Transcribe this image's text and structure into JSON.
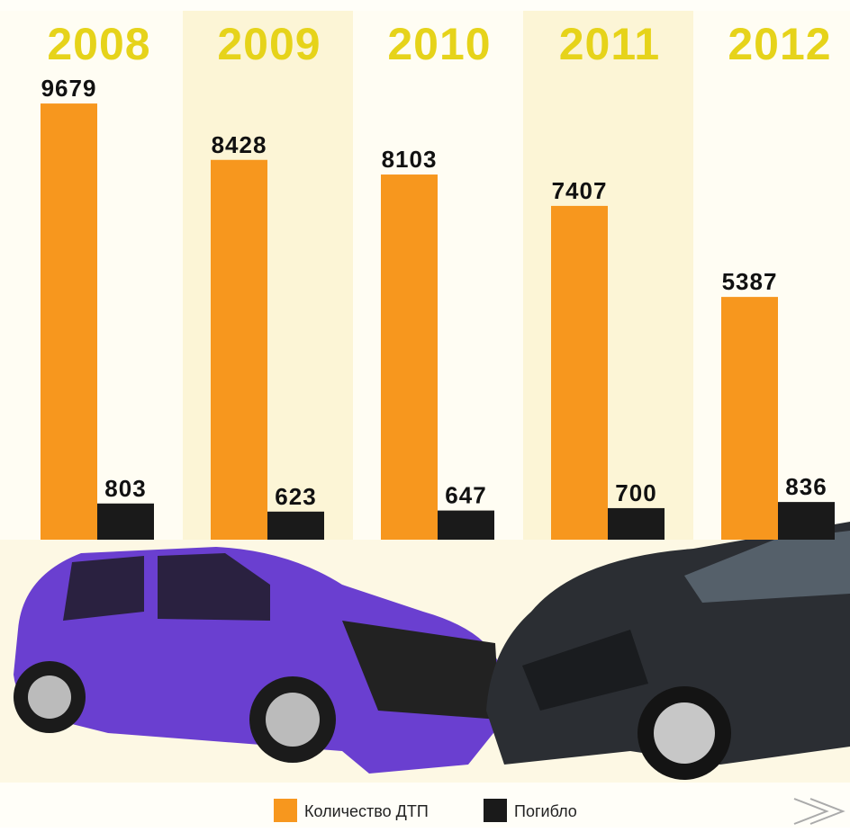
{
  "chart_data": {
    "type": "bar",
    "categories": [
      "2008",
      "2009",
      "2010",
      "2011",
      "2012"
    ],
    "series": [
      {
        "name": "Количество ДТП",
        "color": "#f7971e",
        "values": [
          9679,
          8428,
          8103,
          7407,
          5387
        ]
      },
      {
        "name": "Погибло",
        "color": "#1a1a1a",
        "values": [
          803,
          623,
          647,
          700,
          836
        ]
      }
    ],
    "ylim": [
      0,
      10000
    ]
  }
}
